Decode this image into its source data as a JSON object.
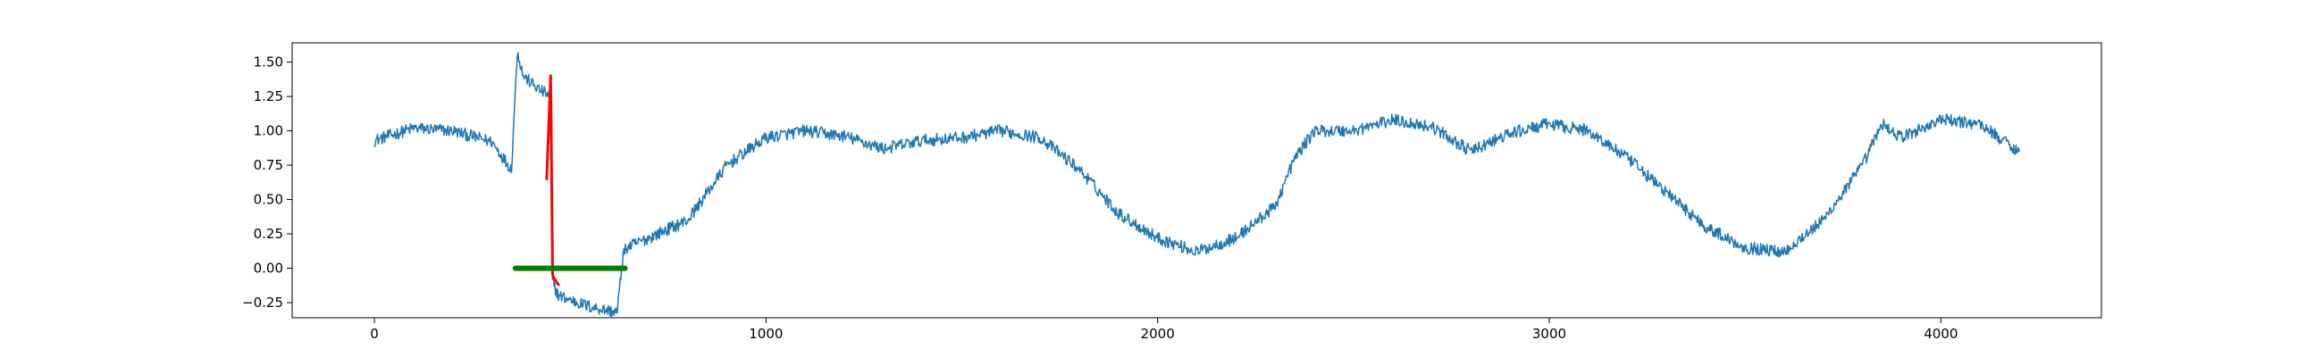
{
  "chart_data": {
    "type": "line",
    "title": "",
    "xlabel": "",
    "ylabel": "",
    "xlim": [
      -210,
      4410
    ],
    "ylim": [
      -0.36,
      1.64
    ],
    "grid": false,
    "legend": "none",
    "x_ticks": [
      0,
      1000,
      2000,
      3000,
      4000
    ],
    "x_tick_labels": [
      "0",
      "1000",
      "2000",
      "3000",
      "4000"
    ],
    "y_ticks": [
      -0.25,
      0.0,
      0.25,
      0.5,
      0.75,
      1.0,
      1.25,
      1.5
    ],
    "y_tick_labels": [
      "−0.25",
      "0.00",
      "0.25",
      "0.50",
      "0.75",
      "1.00",
      "1.25",
      "1.50"
    ],
    "series": [
      {
        "color": "#1f77b4",
        "line_width": 1.5,
        "noise": 0.045,
        "x": [
          0,
          100,
          200,
          300,
          350,
          365,
          380,
          420,
          450,
          455,
          470,
          550,
          620,
          635,
          645,
          700,
          800,
          900,
          1000,
          1100,
          1200,
          1300,
          1400,
          1500,
          1600,
          1700,
          1800,
          1900,
          2000,
          2100,
          2200,
          2300,
          2350,
          2400,
          2500,
          2600,
          2700,
          2800,
          2900,
          3000,
          3100,
          3200,
          3300,
          3400,
          3500,
          3600,
          3700,
          3800,
          3850,
          3900,
          4000,
          4100,
          4200
        ],
        "y": [
          0.93,
          1.02,
          1.0,
          0.92,
          0.72,
          1.58,
          1.4,
          1.3,
          1.25,
          -0.1,
          -0.2,
          -0.28,
          -0.32,
          0.1,
          0.15,
          0.22,
          0.35,
          0.75,
          0.95,
          1.0,
          0.96,
          0.87,
          0.93,
          0.95,
          1.0,
          0.95,
          0.72,
          0.4,
          0.22,
          0.12,
          0.22,
          0.45,
          0.8,
          1.0,
          1.0,
          1.08,
          1.03,
          0.85,
          0.98,
          1.05,
          1.0,
          0.8,
          0.55,
          0.3,
          0.15,
          0.12,
          0.35,
          0.75,
          1.05,
          0.95,
          1.08,
          1.05,
          0.85
        ]
      },
      {
        "color": "#ff0000",
        "line_width": 3,
        "noise": 0.0,
        "x": [
          440,
          450,
          455,
          460,
          470
        ],
        "y": [
          0.65,
          1.4,
          -0.05,
          -0.08,
          -0.12
        ]
      },
      {
        "color": "#008000",
        "line_width": 6,
        "noise": 0.0,
        "x": [
          360,
          640
        ],
        "y": [
          0.0,
          0.0
        ]
      }
    ]
  }
}
